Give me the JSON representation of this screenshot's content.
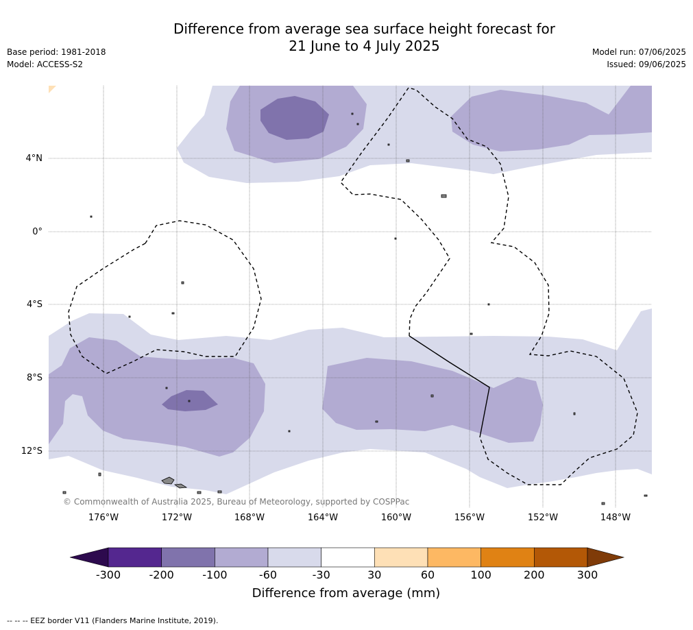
{
  "title": {
    "line1": "Difference from average sea surface height forecast for",
    "line2": "21 June to 4 July 2025"
  },
  "meta_left": {
    "base_period": "Base period: 1981-2018",
    "model": "Model: ACCESS-S2"
  },
  "meta_right": {
    "model_run": "Model run: 07/06/2025",
    "issued": "Issued: 09/06/2025"
  },
  "map": {
    "lat_ticks": [
      "4°N",
      "0°",
      "4°S",
      "8°S",
      "12°S"
    ],
    "lon_ticks": [
      "176°W",
      "172°W",
      "168°W",
      "164°W",
      "160°W",
      "156°W",
      "152°W",
      "148°W"
    ],
    "copyright": "© Commonwealth of Australia 2025, Bureau of Meteorology, supported by COSPPac",
    "colors": {
      "m300": "#2d0a4e",
      "m200": "#54278f",
      "m100": "#8073ac",
      "m60": "#b2abd2",
      "m30": "#d8daeb",
      "zero": "#ffffff",
      "p30": "#fee0b6",
      "p60": "#fdb863",
      "p100": "#e08214",
      "p200": "#b35806",
      "p300": "#7f3b08"
    }
  },
  "colorbar": {
    "ticks": [
      "-300",
      "-200",
      "-100",
      "-60",
      "-30",
      "30",
      "60",
      "100",
      "200",
      "300"
    ],
    "label": "Difference from average (mm)"
  },
  "footer": "-- -- -- EEZ border V11 (Flanders Marine Institute, 2019)."
}
